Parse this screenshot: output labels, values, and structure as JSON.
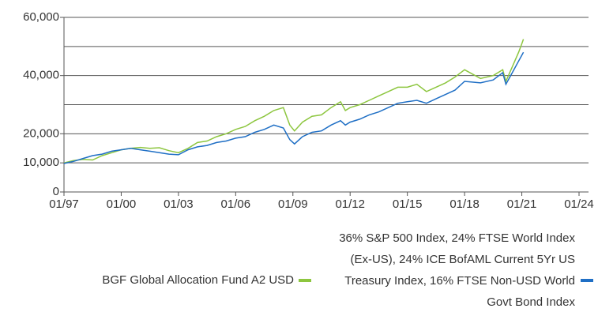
{
  "chart_data": {
    "type": "line",
    "x": [
      "1997-01",
      "1997-07",
      "1998-01",
      "1998-07",
      "1999-01",
      "1999-07",
      "2000-01",
      "2000-07",
      "2001-01",
      "2001-07",
      "2002-01",
      "2002-07",
      "2003-01",
      "2003-07",
      "2004-01",
      "2004-07",
      "2005-01",
      "2005-07",
      "2006-01",
      "2006-07",
      "2007-01",
      "2007-07",
      "2008-01",
      "2008-07",
      "2008-11",
      "2009-02",
      "2009-07",
      "2010-01",
      "2010-07",
      "2011-01",
      "2011-07",
      "2011-10",
      "2012-01",
      "2012-07",
      "2013-01",
      "2013-07",
      "2014-01",
      "2014-07",
      "2015-01",
      "2015-07",
      "2016-01",
      "2016-07",
      "2017-01",
      "2017-07",
      "2018-01",
      "2018-11",
      "2019-07",
      "2020-01",
      "2020-03",
      "2020-07",
      "2020-11",
      "2021-01",
      "2021-02"
    ],
    "series": [
      {
        "name": "BGF Global Allocation Fund A2 USD",
        "color": "#8dc63f",
        "values": [
          10000,
          10800,
          11200,
          11000,
          12500,
          13500,
          14500,
          15000,
          15300,
          15000,
          15200,
          14200,
          13500,
          15000,
          17000,
          17500,
          19000,
          20000,
          21500,
          22500,
          24500,
          26000,
          28000,
          29000,
          23000,
          21000,
          24000,
          26000,
          26500,
          29000,
          31000,
          28000,
          29000,
          30000,
          31500,
          33000,
          34500,
          36000,
          36000,
          37000,
          34500,
          36000,
          37500,
          39500,
          42000,
          39000,
          40000,
          42000,
          38000,
          43000,
          48000,
          51000,
          52500
        ]
      },
      {
        "name": "36% S&P 500 Index, 24% FTSE World Index (Ex-US), 24% ICE BofAML Current 5Yr US Treasury Index, 16% FTSE Non-USD World Govt Bond Index",
        "color": "#1f6fc5",
        "values": [
          9800,
          10500,
          11500,
          12500,
          13000,
          14000,
          14500,
          15000,
          14500,
          14000,
          13500,
          13000,
          12800,
          14500,
          15500,
          16000,
          17000,
          17500,
          18500,
          19000,
          20500,
          21500,
          23000,
          22000,
          18000,
          16500,
          19000,
          20500,
          21000,
          23000,
          24500,
          23000,
          24000,
          25000,
          26500,
          27500,
          29000,
          30500,
          31000,
          31500,
          30500,
          32000,
          33500,
          35000,
          38000,
          37500,
          38500,
          41000,
          37000,
          41000,
          45000,
          47000,
          48000
        ]
      }
    ],
    "xlim": [
      "1997-01",
      "2024-01"
    ],
    "xticks": [
      {
        "value": "1997-01",
        "label": "01/97"
      },
      {
        "value": "2000-01",
        "label": "01/00"
      },
      {
        "value": "2003-01",
        "label": "01/03"
      },
      {
        "value": "2006-01",
        "label": "01/06"
      },
      {
        "value": "2009-01",
        "label": "01/09"
      },
      {
        "value": "2012-01",
        "label": "01/12"
      },
      {
        "value": "2015-01",
        "label": "01/15"
      },
      {
        "value": "2018-01",
        "label": "01/18"
      },
      {
        "value": "2021-01",
        "label": "01/21"
      },
      {
        "value": "2024-01",
        "label": "01/24"
      }
    ],
    "ylim": [
      0,
      60000
    ],
    "yticks": [
      0,
      {
        "value": 10000,
        "label": "10,000"
      },
      {
        "value": 20000,
        "label": "20,000"
      },
      {
        "value": 40000,
        "label": "40,000"
      },
      {
        "value": 60000,
        "label": "60,000"
      }
    ],
    "minor_yticks": [
      30000,
      50000
    ],
    "grid": true
  }
}
